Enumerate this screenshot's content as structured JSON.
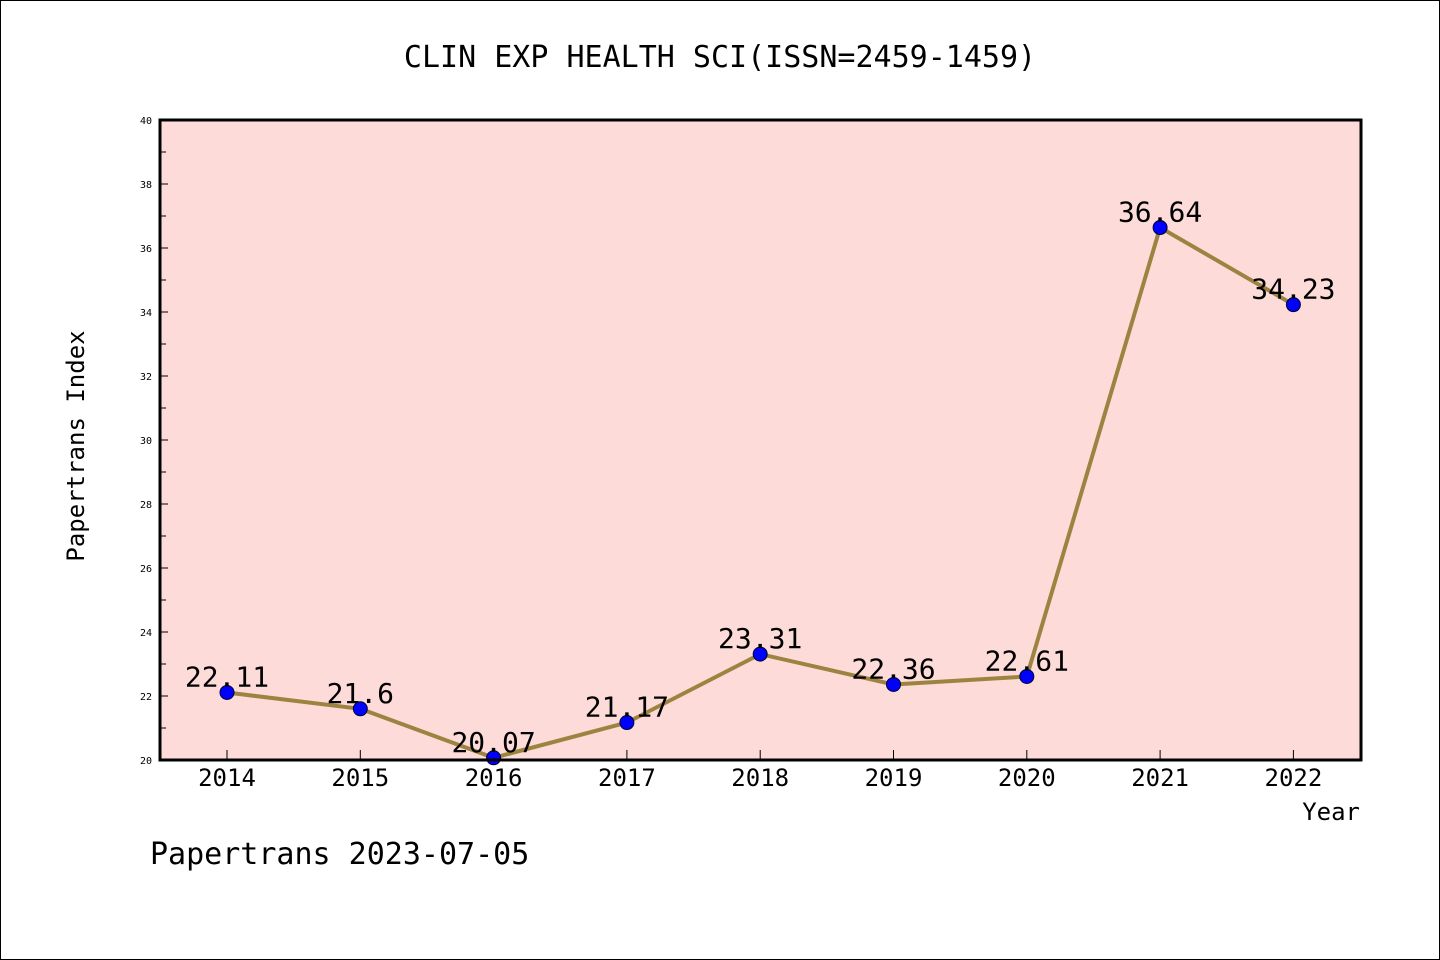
{
  "chart_data": {
    "type": "line",
    "title": "CLIN EXP HEALTH SCI(ISSN=2459-1459)",
    "xlabel": "Year",
    "ylabel": "Papertrans Index",
    "categories": [
      "2014",
      "2015",
      "2016",
      "2017",
      "2018",
      "2019",
      "2020",
      "2021",
      "2022"
    ],
    "series": [
      {
        "values": [
          22.11,
          21.6,
          20.07,
          21.17,
          23.31,
          22.36,
          22.61,
          36.64,
          34.23
        ],
        "labels": [
          "22.11",
          "21.6",
          "20.07",
          "21.17",
          "23.31",
          "22.36",
          "22.61",
          "36.64",
          "34.23"
        ]
      }
    ],
    "ylim": [
      20,
      40
    ],
    "yticks": [
      "20",
      "22",
      "24",
      "26",
      "28",
      "30",
      "32",
      "34",
      "36",
      "38",
      "40"
    ],
    "grid": false,
    "plot_background": "#fddbd9",
    "line_color": "#9c8440",
    "marker_color": "#0000ff"
  },
  "footer": {
    "source_text": "Papertrans 2023-07-05"
  }
}
